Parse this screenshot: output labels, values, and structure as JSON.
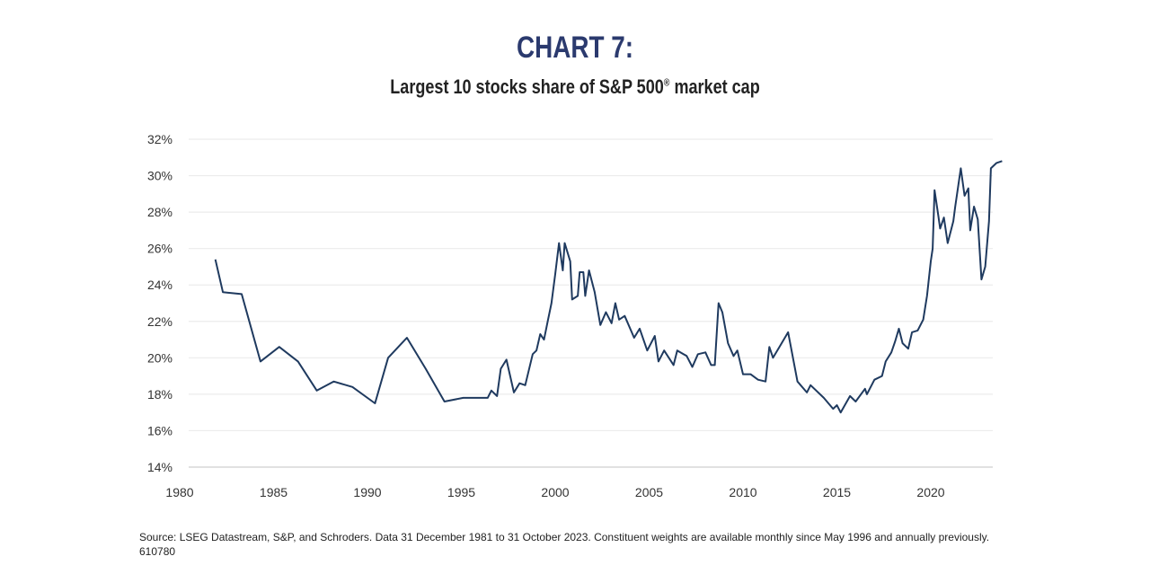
{
  "title": "CHART 7:",
  "subtitle": "Largest 10 stocks share of S&P 500",
  "subtitle_mark": "®",
  "subtitle_end": " market cap",
  "source": "Source: LSEG Datastream, S&P, and Schroders. Data 31 December 1981 to 31 October 2023. Constituent weights are available monthly since May 1996 and annually previously. 610780",
  "chart_data": {
    "type": "line",
    "title": "Largest 10 stocks share of S&P 500® market cap",
    "xlabel": "",
    "ylabel": "",
    "xlim": [
      1980,
      2024
    ],
    "ylim": [
      14,
      32
    ],
    "x_ticks": [
      "1980",
      "1985",
      "1990",
      "1995",
      "2000",
      "2005",
      "2010",
      "2015",
      "2020"
    ],
    "y_ticks": [
      "14%",
      "16%",
      "18%",
      "20%",
      "22%",
      "24%",
      "26%",
      "28%",
      "30%",
      "32%"
    ],
    "grid": "horizontal",
    "line_color": "#1f3a5f",
    "series": [
      {
        "x": [
          1981.9,
          1982.3,
          1983.3,
          1984.3,
          1985.3,
          1986.3,
          1987.3,
          1988.2,
          1989.2,
          1990.4,
          1991.1,
          1992.1,
          1993.1,
          1994.1,
          1995.1,
          1996.4,
          1996.6,
          1996.9,
          1997.1,
          1997.4,
          1997.8,
          1998.1,
          1998.4,
          1998.8,
          1999.0,
          1999.2,
          1999.4,
          1999.6,
          1999.8,
          2000.0,
          2000.2,
          2000.4,
          2000.5,
          2000.8,
          2000.9,
          2001.2,
          2001.3,
          2001.5,
          2001.6,
          2001.8,
          2002.1,
          2002.4,
          2002.7,
          2003.0,
          2003.2,
          2003.4,
          2003.7,
          2004.2,
          2004.5,
          2004.9,
          2005.3,
          2005.5,
          2005.8,
          2006.3,
          2006.5,
          2007.0,
          2007.3,
          2007.6,
          2008.0,
          2008.3,
          2008.5,
          2008.7,
          2008.9,
          2009.2,
          2009.5,
          2009.7,
          2010.0,
          2010.4,
          2010.8,
          2011.2,
          2011.4,
          2011.6,
          2012.0,
          2012.4,
          2012.9,
          2013.4,
          2013.6,
          2014.3,
          2014.8,
          2015.0,
          2015.2,
          2015.7,
          2016.0,
          2016.5,
          2016.6,
          2017.0,
          2017.4,
          2017.6,
          2017.9,
          2018.1,
          2018.3,
          2018.5,
          2018.8,
          2019.0,
          2019.3,
          2019.6,
          2019.8,
          2020.0,
          2020.1,
          2020.2,
          2020.4,
          2020.5,
          2020.7,
          2020.9,
          2021.2,
          2021.3,
          2021.6,
          2021.8,
          2022.0,
          2022.1,
          2022.3,
          2022.5,
          2022.7,
          2022.9,
          2023.1,
          2023.2,
          2023.5,
          2023.8
        ],
        "y": [
          25.4,
          23.6,
          23.5,
          19.8,
          20.6,
          19.8,
          18.2,
          18.7,
          18.4,
          17.5,
          20.0,
          21.1,
          19.4,
          17.6,
          17.8,
          17.8,
          18.2,
          17.9,
          19.4,
          19.9,
          18.1,
          18.6,
          18.5,
          20.2,
          20.4,
          21.3,
          21.0,
          22.0,
          23.0,
          24.6,
          26.3,
          24.8,
          26.3,
          25.3,
          23.2,
          23.4,
          24.7,
          24.7,
          23.4,
          24.8,
          23.6,
          21.8,
          22.5,
          21.9,
          23.0,
          22.1,
          22.3,
          21.1,
          21.6,
          20.4,
          21.2,
          19.8,
          20.4,
          19.6,
          20.4,
          20.1,
          19.5,
          20.2,
          20.3,
          19.6,
          19.6,
          23.0,
          22.5,
          20.8,
          20.1,
          20.4,
          19.1,
          19.1,
          18.8,
          18.7,
          20.6,
          20.0,
          20.7,
          21.4,
          18.7,
          18.1,
          18.5,
          17.8,
          17.2,
          17.4,
          17.0,
          17.9,
          17.6,
          18.3,
          18.0,
          18.8,
          19.0,
          19.8,
          20.3,
          20.9,
          21.6,
          20.8,
          20.5,
          21.4,
          21.5,
          22.1,
          23.4,
          25.3,
          26.0,
          29.2,
          27.8,
          27.1,
          27.7,
          26.3,
          27.5,
          28.3,
          30.4,
          28.9,
          29.3,
          27.0,
          28.3,
          27.6,
          24.3,
          25.0,
          27.5,
          30.4,
          30.7,
          30.8
        ]
      }
    ]
  }
}
